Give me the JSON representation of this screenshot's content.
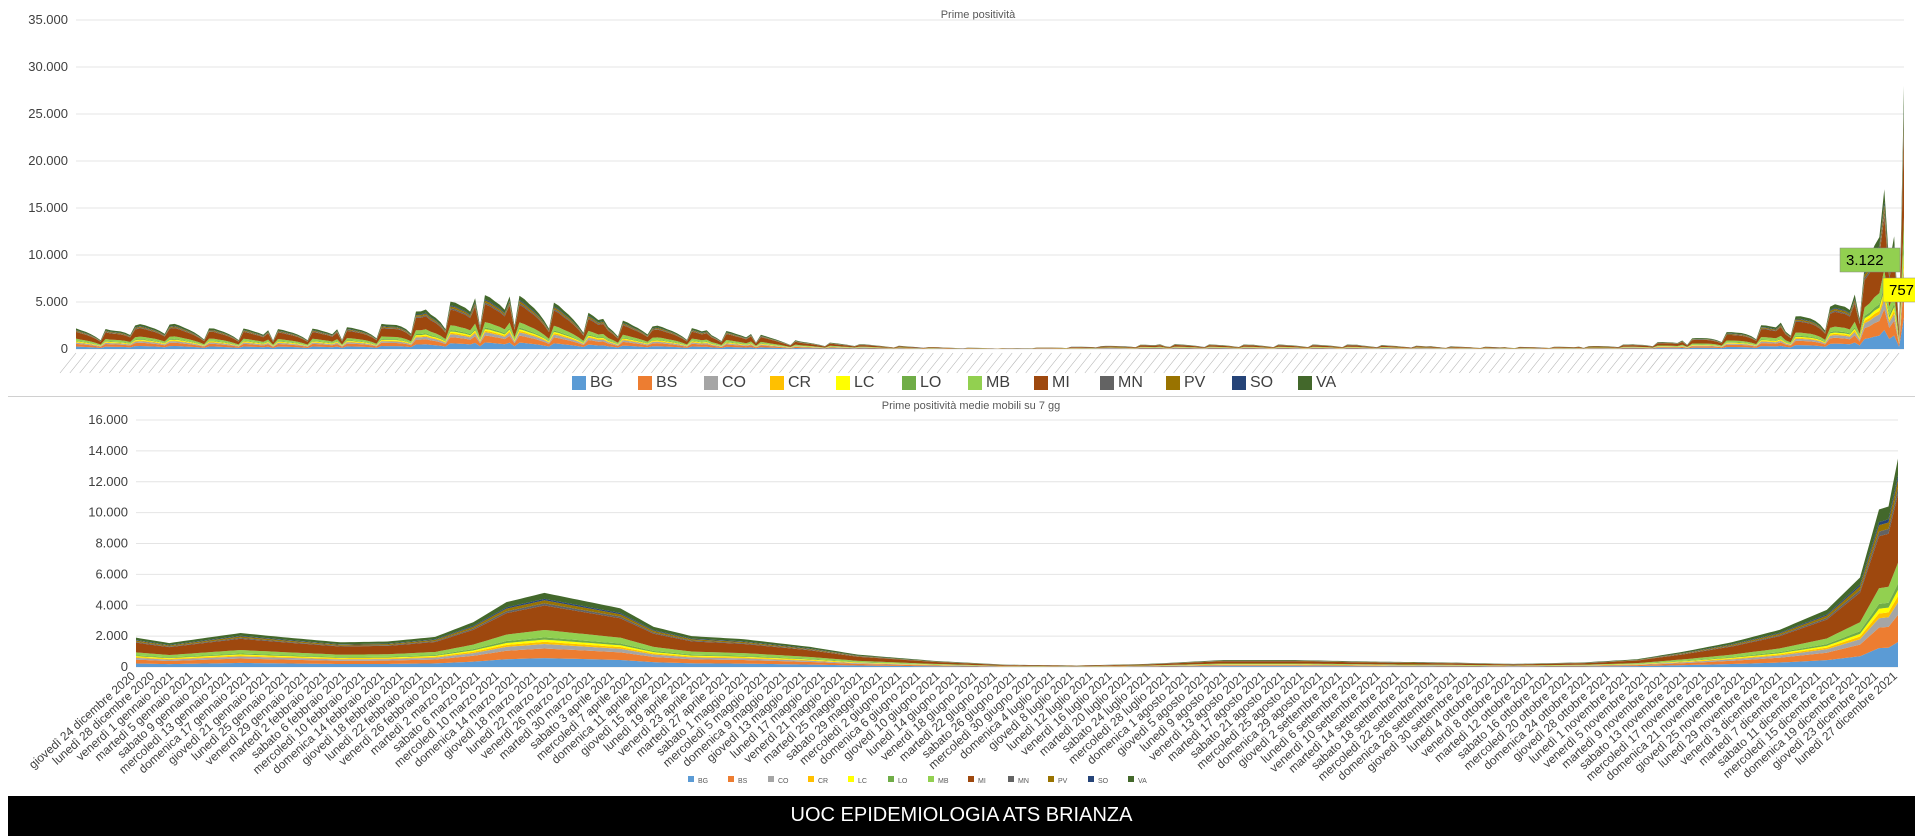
{
  "footer": {
    "text": "UOC EPIDEMIOLOGIA ATS BRIANZA"
  },
  "colors": {
    "BG": "#5b9bd5",
    "BS": "#ed7d31",
    "CO": "#a5a5a5",
    "CR": "#ffc000",
    "LC": "#ffff00",
    "LO": "#70ad47",
    "MB": "#92d050",
    "MI": "#9e480e",
    "MN": "#636363",
    "PV": "#997300",
    "SO": "#264478",
    "VA": "#43682b"
  },
  "chart_data": [
    {
      "type": "area",
      "stacked": true,
      "title": "Prime positività",
      "ylim": [
        0,
        35000
      ],
      "yticks": [
        "0",
        "5.000",
        "10.000",
        "15.000",
        "20.000",
        "25.000",
        "30.000",
        "35.000"
      ],
      "grid": true,
      "legend_position": "bottom",
      "legend": [
        "BG",
        "BS",
        "CO",
        "CR",
        "LC",
        "LO",
        "MB",
        "MI",
        "MN",
        "PV",
        "SO",
        "VA"
      ],
      "annotations": [
        {
          "text": "3.122",
          "series": "MB"
        },
        {
          "text": "757",
          "series": "LC"
        }
      ],
      "series_order": [
        "BG",
        "BS",
        "CO",
        "CR",
        "LC",
        "LO",
        "MB",
        "MI",
        "MN",
        "PV",
        "SO",
        "VA"
      ],
      "shares": [
        0.12,
        0.13,
        0.06,
        0.03,
        0.03,
        0.03,
        0.1,
        0.33,
        0.03,
        0.04,
        0.02,
        0.08
      ],
      "x_start": "2020-12-24",
      "x_end": "2021-12-30",
      "total_keypoints": [
        [
          "2020-12-24",
          2200
        ],
        [
          "2020-12-31",
          2000
        ],
        [
          "2021-01-05",
          2500
        ],
        [
          "2021-01-12",
          2600
        ],
        [
          "2021-01-20",
          2200
        ],
        [
          "2021-02-01",
          2000
        ],
        [
          "2021-02-15",
          2100
        ],
        [
          "2021-02-25",
          2600
        ],
        [
          "2021-03-05",
          4200
        ],
        [
          "2021-03-15",
          5400
        ],
        [
          "2021-03-22",
          5600
        ],
        [
          "2021-04-01",
          4600
        ],
        [
          "2021-04-10",
          3200
        ],
        [
          "2021-04-20",
          2400
        ],
        [
          "2021-05-01",
          2000
        ],
        [
          "2021-05-10",
          1600
        ],
        [
          "2021-05-20",
          800
        ],
        [
          "2021-06-01",
          500
        ],
        [
          "2021-06-15",
          200
        ],
        [
          "2021-07-01",
          80
        ],
        [
          "2021-07-20",
          300
        ],
        [
          "2021-08-01",
          500
        ],
        [
          "2021-08-20",
          450
        ],
        [
          "2021-09-10",
          450
        ],
        [
          "2021-09-25",
          300
        ],
        [
          "2021-10-10",
          200
        ],
        [
          "2021-10-25",
          250
        ],
        [
          "2021-11-05",
          500
        ],
        [
          "2021-11-15",
          900
        ],
        [
          "2021-11-25",
          1800
        ],
        [
          "2021-12-05",
          2800
        ],
        [
          "2021-12-15",
          4500
        ],
        [
          "2021-12-20",
          5800
        ],
        [
          "2021-12-24",
          11000
        ],
        [
          "2021-12-26",
          17000
        ],
        [
          "2021-12-27",
          9000
        ],
        [
          "2021-12-28",
          12000
        ],
        [
          "2021-12-29",
          2000
        ],
        [
          "2021-12-30",
          28000
        ]
      ]
    },
    {
      "type": "area",
      "stacked": true,
      "title": "Prime positività medie mobili su 7 gg",
      "ylim": [
        0,
        16000
      ],
      "yticks": [
        "0",
        "2.000",
        "4.000",
        "6.000",
        "8.000",
        "10.000",
        "12.000",
        "14.000",
        "16.000"
      ],
      "grid": true,
      "legend_position": "bottom",
      "legend": [
        "BG",
        "BS",
        "CO",
        "CR",
        "LC",
        "LO",
        "MB",
        "MI",
        "MN",
        "PV",
        "SO",
        "VA"
      ],
      "series_order": [
        "BG",
        "BS",
        "CO",
        "CR",
        "LC",
        "LO",
        "MB",
        "MI",
        "MN",
        "PV",
        "SO",
        "VA"
      ],
      "shares": [
        0.12,
        0.13,
        0.06,
        0.03,
        0.03,
        0.03,
        0.1,
        0.33,
        0.03,
        0.04,
        0.02,
        0.08
      ],
      "x_start": "2020-12-24",
      "x_end": "2021-12-30",
      "total_keypoints": [
        [
          "2020-12-24",
          1900
        ],
        [
          "2020-12-31",
          1550
        ],
        [
          "2021-01-08",
          1900
        ],
        [
          "2021-01-15",
          2200
        ],
        [
          "2021-01-25",
          1900
        ],
        [
          "2021-02-05",
          1600
        ],
        [
          "2021-02-15",
          1650
        ],
        [
          "2021-02-25",
          1950
        ],
        [
          "2021-03-05",
          2900
        ],
        [
          "2021-03-12",
          4200
        ],
        [
          "2021-03-20",
          4800
        ],
        [
          "2021-03-28",
          4300
        ],
        [
          "2021-04-05",
          3800
        ],
        [
          "2021-04-12",
          2600
        ],
        [
          "2021-04-20",
          2000
        ],
        [
          "2021-05-01",
          1800
        ],
        [
          "2021-05-15",
          1300
        ],
        [
          "2021-05-25",
          800
        ],
        [
          "2021-06-10",
          400
        ],
        [
          "2021-06-25",
          150
        ],
        [
          "2021-07-10",
          100
        ],
        [
          "2021-07-25",
          200
        ],
        [
          "2021-08-10",
          450
        ],
        [
          "2021-08-25",
          450
        ],
        [
          "2021-09-10",
          350
        ],
        [
          "2021-09-25",
          300
        ],
        [
          "2021-10-10",
          200
        ],
        [
          "2021-10-25",
          300
        ],
        [
          "2021-11-05",
          500
        ],
        [
          "2021-11-15",
          1000
        ],
        [
          "2021-11-25",
          1600
        ],
        [
          "2021-12-05",
          2400
        ],
        [
          "2021-12-15",
          3700
        ],
        [
          "2021-12-22",
          5800
        ],
        [
          "2021-12-26",
          10200
        ],
        [
          "2021-12-28",
          10400
        ],
        [
          "2021-12-30",
          13500
        ]
      ],
      "x_labels": [
        "giovedì 24 dicembre 2020",
        "lunedì 28 dicembre 2020",
        "venerdì 1 gennaio 2021",
        "martedì 5 gennaio 2021",
        "sabato 9 gennaio 2021",
        "mercoledì 13 gennaio 2021",
        "domenica 17 gennaio 2021",
        "giovedì 21 gennaio 2021",
        "lunedì 25 gennaio 2021",
        "venerdì 29 gennaio 2021",
        "martedì 2 febbraio 2021",
        "sabato 6 febbraio 2021",
        "mercoledì 10 febbraio 2021",
        "domenica 14 febbraio 2021",
        "giovedì 18 febbraio 2021",
        "lunedì 22 febbraio 2021",
        "venerdì 26 febbraio 2021",
        "martedì 2 marzo 2021",
        "sabato 6 marzo 2021",
        "mercoledì 10 marzo 2021",
        "domenica 14 marzo 2021",
        "giovedì 18 marzo 2021",
        "lunedì 22 marzo 2021",
        "venerdì 26 marzo 2021",
        "martedì 30 marzo 2021",
        "sabato 3 aprile 2021",
        "mercoledì 7 aprile 2021",
        "domenica 11 aprile 2021",
        "giovedì 15 aprile 2021",
        "lunedì 19 aprile 2021",
        "venerdì 23 aprile 2021",
        "martedì 27 aprile 2021",
        "sabato 1 maggio 2021",
        "mercoledì 5 maggio 2021",
        "domenica 9 maggio 2021",
        "giovedì 13 maggio 2021",
        "lunedì 17 maggio 2021",
        "venerdì 21 maggio 2021",
        "martedì 25 maggio 2021",
        "sabato 29 maggio 2021",
        "mercoledì 2 giugno 2021",
        "domenica 6 giugno 2021",
        "giovedì 10 giugno 2021",
        "lunedì 14 giugno 2021",
        "venerdì 18 giugno 2021",
        "martedì 22 giugno 2021",
        "sabato 26 giugno 2021",
        "mercoledì 30 giugno 2021",
        "domenica 4 luglio 2021",
        "giovedì 8 luglio 2021",
        "lunedì 12 luglio 2021",
        "venerdì 16 luglio 2021",
        "martedì 20 luglio 2021",
        "sabato 24 luglio 2021",
        "mercoledì 28 luglio 2021",
        "domenica 1 agosto 2021",
        "giovedì 5 agosto 2021",
        "lunedì 9 agosto 2021",
        "venerdì 13 agosto 2021",
        "martedì 17 agosto 2021",
        "sabato 21 agosto 2021",
        "mercoledì 25 agosto 2021",
        "domenica 29 agosto 2021",
        "giovedì 2 settembre 2021",
        "lunedì 6 settembre 2021",
        "venerdì 10 settembre 2021",
        "martedì 14 settembre 2021",
        "sabato 18 settembre 2021",
        "mercoledì 22 settembre 2021",
        "domenica 26 settembre 2021",
        "giovedì 30 settembre 2021",
        "lunedì 4 ottobre 2021",
        "venerdì 8 ottobre 2021",
        "martedì 12 ottobre 2021",
        "sabato 16 ottobre 2021",
        "mercoledì 20 ottobre 2021",
        "domenica 24 ottobre 2021",
        "giovedì 28 ottobre 2021",
        "lunedì 1 novembre 2021",
        "venerdì 5 novembre 2021",
        "martedì 9 novembre 2021",
        "sabato 13 novembre 2021",
        "mercoledì 17 novembre 2021",
        "domenica 21 novembre 2021",
        "giovedì 25 novembre 2021",
        "lunedì 29 novembre 2021",
        "venerdì 3 dicembre 2021",
        "martedì 7 dicembre 2021",
        "sabato 11 dicembre 2021",
        "mercoledì 15 dicembre 2021",
        "domenica 19 dicembre 2021",
        "giovedì 23 dicembre 2021",
        "lunedì 27 dicembre 2021"
      ]
    }
  ]
}
